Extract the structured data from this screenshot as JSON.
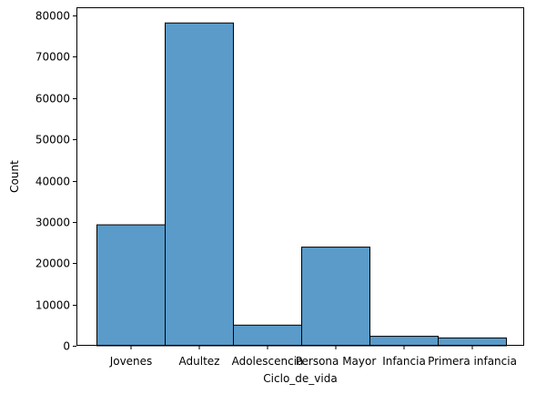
{
  "chart_data": {
    "type": "bar",
    "title": "",
    "xlabel": "Ciclo_de_vida",
    "ylabel": "Count",
    "categories": [
      "Jovenes",
      "Adultez",
      "Adolescencia",
      "Persona Mayor",
      "Infancia",
      "Primera infancia"
    ],
    "values": [
      29300,
      78200,
      5000,
      23900,
      2300,
      1900
    ],
    "ylim": [
      0,
      82000
    ],
    "yticks": [
      0,
      10000,
      20000,
      30000,
      40000,
      50000,
      60000,
      70000,
      80000
    ],
    "grid": false,
    "legend": "none",
    "bar_color": "#5a9bc9",
    "bar_edge_color": "#000000"
  }
}
